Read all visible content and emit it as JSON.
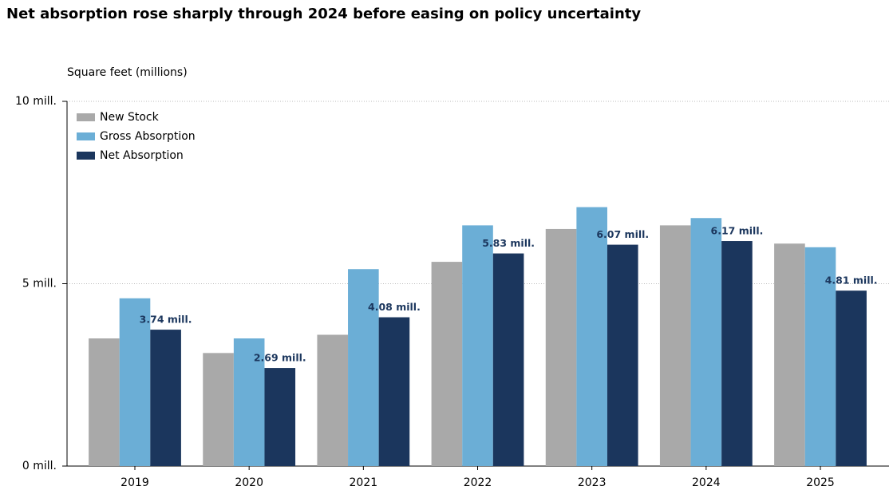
{
  "chart_data": {
    "type": "bar",
    "title": "Net absorption rose sharply through 2024 before easing on policy uncertainty",
    "y_label": "Square feet (millions)",
    "categories": [
      "2019",
      "2020",
      "2021",
      "2022",
      "2023",
      "2024",
      "2025"
    ],
    "series": [
      {
        "name": "New Stock",
        "color": "#a9a9a9",
        "values": [
          3.5,
          3.1,
          3.6,
          5.6,
          6.5,
          6.6,
          6.1
        ]
      },
      {
        "name": "Gross Absorption",
        "color": "#6baed6",
        "values": [
          4.6,
          3.5,
          5.4,
          6.6,
          7.1,
          6.8,
          6.0
        ]
      },
      {
        "name": "Net Absorption",
        "color": "#1b365d",
        "values": [
          3.74,
          2.69,
          4.08,
          5.83,
          6.07,
          6.17,
          4.81
        ],
        "value_labels": [
          "3.74 mill.",
          "2.69 mill.",
          "4.08 mill.",
          "5.83 mill.",
          "6.07 mill.",
          "6.17 mill.",
          "4.81 mill."
        ]
      }
    ],
    "ylim": [
      0,
      10
    ],
    "yticks": [
      {
        "value": 0,
        "label": "0 mill."
      },
      {
        "value": 5,
        "label": "5 mill."
      },
      {
        "value": 10,
        "label": "10 mill."
      }
    ],
    "grid": true,
    "legend": "upper-left"
  }
}
